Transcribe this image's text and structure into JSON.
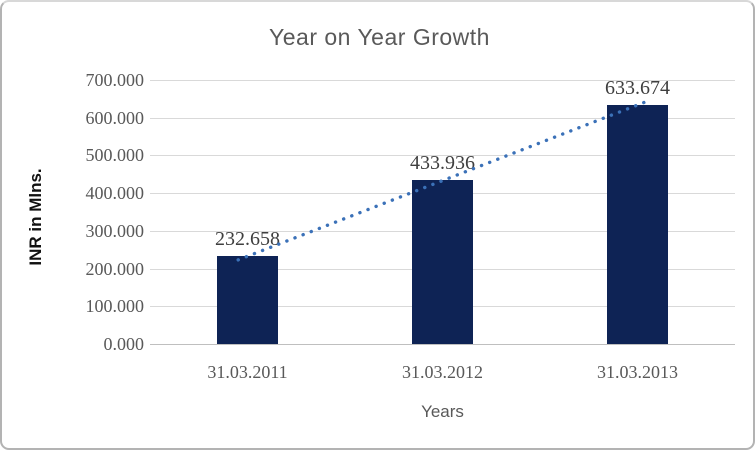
{
  "chart_data": {
    "type": "bar",
    "title": "Year on Year Growth",
    "xlabel": "Years",
    "ylabel": "INR in Mlns.",
    "categories": [
      "31.03.2011",
      "31.03.2012",
      "31.03.2013"
    ],
    "values": [
      232.658,
      433.936,
      633.674
    ],
    "data_labels": [
      "232.658",
      "433.936",
      "633.674"
    ],
    "ylim": [
      0,
      700
    ],
    "ytick_values": [
      0,
      100,
      200,
      300,
      400,
      500,
      600,
      700
    ],
    "ytick_labels": [
      "0.000",
      "100.000",
      "200.000",
      "300.000",
      "400.000",
      "500.000",
      "600.000",
      "700.000"
    ],
    "grid": true,
    "legend": "none",
    "bar_color": "#0e2355",
    "gridline_color": "#d9d9d9",
    "axis_line_color": "#bfbfbf",
    "text_color": "#595959",
    "trendline": {
      "type": "linear",
      "style": "dotted",
      "color": "#3b71b8"
    }
  }
}
